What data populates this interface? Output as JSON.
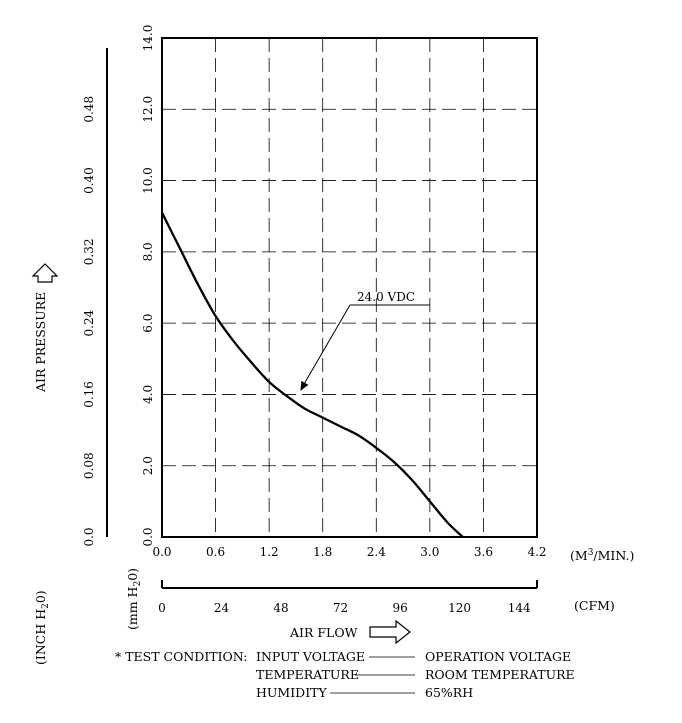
{
  "chart_data": {
    "type": "line",
    "x_unit_label": "(M3/MIN.)",
    "x_ticks": [
      "0.0",
      "0.6",
      "1.2",
      "1.8",
      "2.4",
      "3.0",
      "3.6",
      "4.2"
    ],
    "xlim": [
      0,
      4.2
    ],
    "cfm_unit_label": "(CFM)",
    "cfm_ticks": [
      "0",
      "24",
      "48",
      "72",
      "96",
      "120",
      "144"
    ],
    "cfm_lim": [
      0,
      151.2
    ],
    "xlabel": "AIR FLOW",
    "ylabel": "AIR PRESSURE",
    "y_ticks": [
      "0.0",
      "2.0",
      "4.0",
      "6.0",
      "8.0",
      "10.0",
      "12.0",
      "14.0"
    ],
    "ylim": [
      0,
      14
    ],
    "y_unit_label": "(mm H2O)",
    "inch_ticks": [
      "0.0",
      "0.08",
      "0.16",
      "0.24",
      "0.32",
      "0.40",
      "0.48"
    ],
    "inch_lim": [
      0,
      0.56
    ],
    "inch_unit_label": "(INCH H2O)",
    "grid": true,
    "series": [
      {
        "name": "24.0 VDC",
        "x": [
          0.0,
          0.2,
          0.4,
          0.6,
          0.8,
          1.0,
          1.2,
          1.4,
          1.6,
          1.8,
          2.0,
          2.2,
          2.4,
          2.6,
          2.8,
          3.0,
          3.2,
          3.37
        ],
        "y": [
          9.1,
          8.1,
          7.1,
          6.2,
          5.5,
          4.9,
          4.35,
          3.95,
          3.6,
          3.35,
          3.1,
          2.85,
          2.5,
          2.1,
          1.6,
          1.0,
          0.4,
          0.0
        ]
      }
    ],
    "annotation": {
      "text": "24.0 VDC",
      "x": 1.55,
      "y": 4.1
    }
  },
  "test_condition": {
    "prefix": "* TEST CONDITION:",
    "rows": [
      {
        "label": "INPUT VOLTAGE",
        "value": "OPERATION VOLTAGE"
      },
      {
        "label": "TEMPERATURE",
        "value": "ROOM TEMPERATURE"
      },
      {
        "label": "HUMIDITY",
        "value": "65%RH"
      }
    ]
  }
}
